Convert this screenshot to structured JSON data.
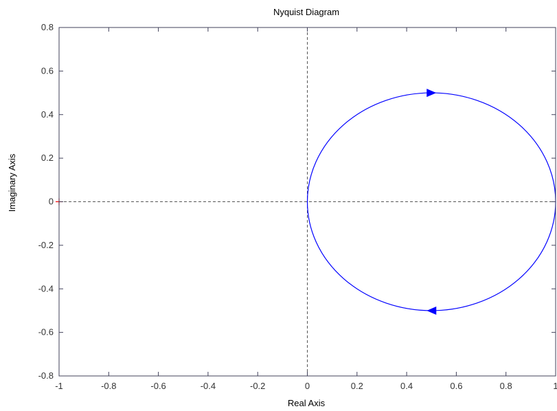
{
  "chart_data": {
    "type": "line",
    "title": "Nyquist Diagram",
    "xlabel": "Real Axis",
    "ylabel": "Imaginary Axis",
    "xlim": [
      -1,
      1
    ],
    "ylim": [
      -0.8,
      0.8
    ],
    "x_ticks": [
      -1,
      -0.8,
      -0.6,
      -0.4,
      -0.2,
      0,
      0.2,
      0.4,
      0.6,
      0.8,
      1
    ],
    "x_tick_labels": [
      "-1",
      "-0.8",
      "-0.6",
      "-0.4",
      "-0.2",
      "0",
      "0.2",
      "0.4",
      "0.6",
      "0.8",
      "1"
    ],
    "y_ticks": [
      -0.8,
      -0.6,
      -0.4,
      -0.2,
      0,
      0.2,
      0.4,
      0.6,
      0.8
    ],
    "y_tick_labels": [
      "-0.8",
      "-0.6",
      "-0.4",
      "-0.2",
      "0",
      "0.2",
      "0.4",
      "0.6",
      "0.8"
    ],
    "grid": false,
    "reference_lines": [
      {
        "orientation": "horizontal",
        "value": 0,
        "style": "dashed"
      },
      {
        "orientation": "vertical",
        "value": 0,
        "style": "dashed"
      }
    ],
    "critical_point": {
      "x": -1,
      "y": 0,
      "marker": "+",
      "color": "#ff0000"
    },
    "series": [
      {
        "shape": "circle",
        "center": [
          0.5,
          0
        ],
        "radius": 0.5,
        "color": "#0000ff",
        "arrows": [
          {
            "x": 0.5,
            "y": 0.5,
            "direction": "right"
          },
          {
            "x": 0.5,
            "y": -0.5,
            "direction": "left"
          }
        ]
      }
    ]
  }
}
